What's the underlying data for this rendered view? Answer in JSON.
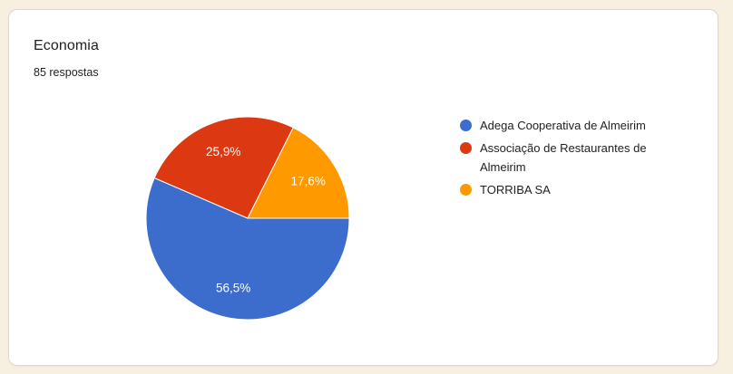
{
  "card": {
    "title": "Economia",
    "subtitle": "85 respostas"
  },
  "chart_data": {
    "type": "pie",
    "title": "Economia",
    "responses_total": 85,
    "legend_position": "right",
    "start_angle_deg_from_east": 0,
    "direction": "clockwise",
    "slices": [
      {
        "label": "Adega Cooperativa de Almeirim",
        "value_pct": 56.5,
        "display": "56,5%",
        "color": "#3c6ccc"
      },
      {
        "label": "Associação de Restaurantes de Almeirim",
        "value_pct": 25.9,
        "display": "25,9%",
        "color": "#dc3912"
      },
      {
        "label": "TORRIBA SA",
        "value_pct": 17.6,
        "display": "17,6%",
        "color": "#ff9900"
      }
    ]
  },
  "colors": {
    "page_background": "#f7f0e0",
    "card_background": "#ffffff",
    "card_border": "#dbd8ce",
    "text_primary": "#202124",
    "slice_label_text": "#ffffff"
  }
}
